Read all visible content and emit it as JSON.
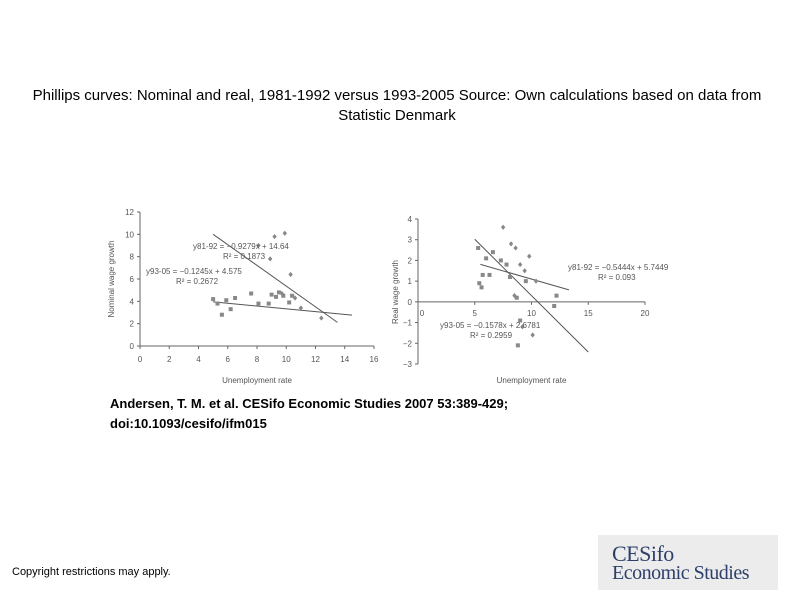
{
  "title": "Phillips curves: Nominal and real, 1981-1992 versus 1993-2005 Source: Own calculations based on data from Statistic Denmark",
  "citation_line1": "Andersen, T. M. et al. CESifo Economic Studies 2007 53:389-429;",
  "citation_line2": "doi:10.1093/cesifo/ifm015",
  "copyright": "Copyright restrictions may apply.",
  "logo": {
    "line1": "CESifo",
    "line2": "Economic Studies"
  },
  "colors": {
    "points": "#888888",
    "lines": "#555555",
    "axes": "#666666"
  },
  "chart_data": [
    {
      "type": "scatter",
      "xlabel": "Unemployment rate",
      "ylabel": "Nominal wage growth",
      "xlim": [
        0,
        16
      ],
      "ylim": [
        0,
        12
      ],
      "x_ticks": [
        "0",
        "2",
        "4",
        "6",
        "8",
        "10",
        "12",
        "14",
        "16"
      ],
      "y_ticks": [
        "0",
        "2",
        "4",
        "6",
        "8",
        "10",
        "12"
      ],
      "series": [
        {
          "name": "1981-92",
          "marker": "diamond",
          "points": [
            [
              8.1,
              9.0
            ],
            [
              9.2,
              9.8
            ],
            [
              9.9,
              10.1
            ],
            [
              8.9,
              7.8
            ],
            [
              10.3,
              6.4
            ],
            [
              10.6,
              4.3
            ],
            [
              12.4,
              2.5
            ],
            [
              11.0,
              3.4
            ],
            [
              9.7,
              4.7
            ]
          ]
        },
        {
          "name": "1993-05",
          "marker": "square",
          "points": [
            [
              5.0,
              4.2
            ],
            [
              5.3,
              3.8
            ],
            [
              5.6,
              2.8
            ],
            [
              5.9,
              4.1
            ],
            [
              6.2,
              3.3
            ],
            [
              6.5,
              4.3
            ],
            [
              7.6,
              4.7
            ],
            [
              8.1,
              3.8
            ],
            [
              8.8,
              3.8
            ],
            [
              9.0,
              4.6
            ],
            [
              9.3,
              4.4
            ],
            [
              9.5,
              4.8
            ],
            [
              9.8,
              4.5
            ],
            [
              10.2,
              3.9
            ],
            [
              10.4,
              4.5
            ]
          ]
        }
      ],
      "fits": [
        {
          "series": "1981-92",
          "label": "y81-92 = −0.9279x + 14.64",
          "r2": "R² = 0.1873",
          "slope": -0.9279,
          "intercept": 14.64,
          "x_range": [
            5,
            13.5
          ]
        },
        {
          "series": "1993-05",
          "label": "y93-05 = −0.1245x + 4.575",
          "r2": "R² = 0.2672",
          "slope": -0.1245,
          "intercept": 4.575,
          "x_range": [
            5,
            14.5
          ]
        }
      ]
    },
    {
      "type": "scatter",
      "xlabel": "Unemployment rate",
      "ylabel": "Real wage growth",
      "xlim": [
        0,
        20
      ],
      "ylim": [
        -3,
        4
      ],
      "x_ticks": [
        "0",
        "5",
        "10",
        "15",
        "20"
      ],
      "y_ticks": [
        "−3",
        "−2",
        "−1",
        "0",
        "1",
        "2",
        "3",
        "4"
      ],
      "series": [
        {
          "name": "1981-92",
          "marker": "diamond",
          "points": [
            [
              7.5,
              3.6
            ],
            [
              8.2,
              2.8
            ],
            [
              8.6,
              2.6
            ],
            [
              9.0,
              1.8
            ],
            [
              9.4,
              1.5
            ],
            [
              9.8,
              2.2
            ],
            [
              10.4,
              1.0
            ],
            [
              8.5,
              0.3
            ],
            [
              9.2,
              -1.2
            ],
            [
              10.1,
              -1.6
            ]
          ]
        },
        {
          "name": "1993-05",
          "marker": "square",
          "points": [
            [
              5.3,
              2.6
            ],
            [
              5.7,
              1.3
            ],
            [
              6.0,
              2.1
            ],
            [
              6.3,
              1.3
            ],
            [
              6.6,
              2.4
            ],
            [
              7.3,
              2.0
            ],
            [
              7.8,
              1.8
            ],
            [
              8.1,
              1.2
            ],
            [
              5.4,
              0.9
            ],
            [
              5.6,
              0.7
            ],
            [
              8.7,
              0.2
            ],
            [
              9.5,
              1.0
            ],
            [
              9.0,
              -0.9
            ],
            [
              12.2,
              0.3
            ],
            [
              12.0,
              -0.2
            ],
            [
              8.8,
              -2.1
            ]
          ]
        }
      ],
      "fits": [
        {
          "series": "1981-92",
          "label": "y81-92 = −0.5444x + 5.7449",
          "r2": "R² = 0.093",
          "slope": -0.5444,
          "intercept": 5.7449,
          "x_range": [
            5,
            15
          ]
        },
        {
          "series": "1993-05",
          "label": "y93-05 = −0.1578x + 2.6781",
          "r2": "R² = 0.2959",
          "slope": -0.1578,
          "intercept": 2.6781,
          "x_range": [
            5.5,
            13.3
          ]
        }
      ]
    }
  ]
}
